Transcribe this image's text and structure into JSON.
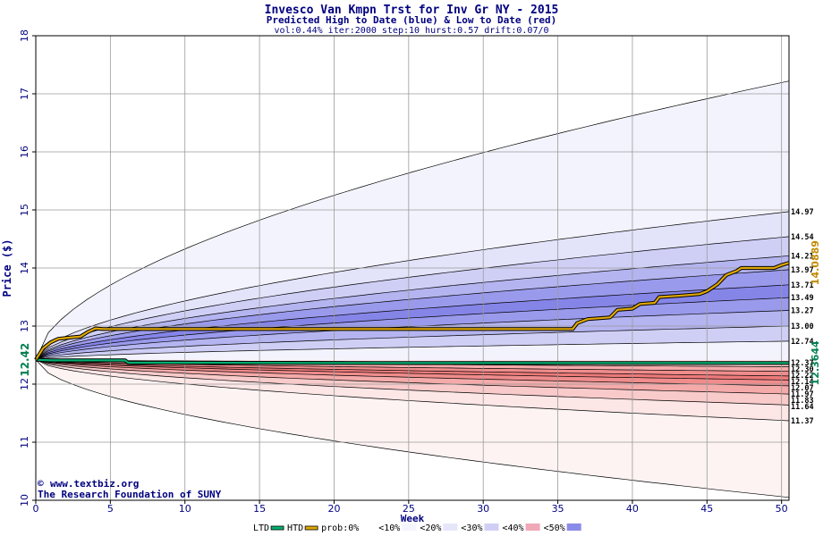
{
  "chart_data": {
    "type": "area",
    "title": "Invesco Van Kmpn Trst for Inv Gr NY - 2015",
    "subtitle": "Predicted High to Date (blue) &  Low to Date (red)",
    "params": "vol:0.44% iter:2000 step:10 hurst:0.57 drift:0.07/0",
    "xlabel": "Week",
    "ylabel": "Price ($)",
    "xlim": [
      0,
      50.5
    ],
    "ylim": [
      10,
      18
    ],
    "xticks": [
      0,
      5,
      10,
      15,
      20,
      25,
      30,
      35,
      40,
      45,
      50
    ],
    "yticks": [
      10,
      11,
      12,
      13,
      14,
      15,
      16,
      17,
      18
    ],
    "grid": true,
    "start_price": 12.42,
    "start_label": "12.42",
    "end_x": 50.5,
    "upper_bands": [
      {
        "end": 17.22,
        "fill": "#f3f3fd"
      },
      {
        "end": 14.97,
        "label": "14.97",
        "fill": "#e3e3fa"
      },
      {
        "end": 14.54,
        "label": "14.54",
        "fill": "#cfcff6"
      },
      {
        "end": 14.21,
        "label": "14.21",
        "fill": "#b4b4f0"
      },
      {
        "end": 13.97,
        "label": "13.97",
        "fill": "#9a9aec"
      },
      {
        "end": 13.71,
        "label": "13.71",
        "fill": "#8585e8"
      },
      {
        "end": 13.49,
        "label": "13.49",
        "fill": "#9a9aec"
      },
      {
        "end": 13.27,
        "label": "13.27",
        "fill": "#b4b4f0"
      },
      {
        "end": 13.0,
        "label": "13.00",
        "fill": "#cfcff6"
      },
      {
        "end": 12.74,
        "label": "12.74",
        "fill": "#f3f3fd"
      }
    ],
    "lower_bands": [
      {
        "end": 12.37,
        "label": "12.37",
        "fill": "#fde6e6"
      },
      {
        "end": 12.3,
        "label": "12.30",
        "fill": "#f9caca"
      },
      {
        "end": 12.22,
        "label": "12.22",
        "fill": "#f5aaaa"
      },
      {
        "end": 12.14,
        "label": "12.14",
        "fill": "#f08c8c"
      },
      {
        "end": 12.07,
        "label": "12.07",
        "fill": "#ed7a7a"
      },
      {
        "end": 11.97,
        "label": "11.97",
        "fill": "#f08c8c"
      },
      {
        "end": 11.83,
        "label": "11.83",
        "fill": "#f5aaaa"
      },
      {
        "end": 11.64,
        "label": "11.64",
        "fill": "#f9caca"
      },
      {
        "end": 11.37,
        "label": "11.37",
        "fill": "#fde6e6"
      },
      {
        "end": 10.05,
        "fill": "#fdf3f3"
      }
    ],
    "series": [
      {
        "name": "HTD",
        "color": "#e0a800",
        "end_label": "14.0889",
        "points": [
          [
            0,
            12.42
          ],
          [
            0.5,
            12.62
          ],
          [
            1.0,
            12.72
          ],
          [
            1.5,
            12.78
          ],
          [
            2.2,
            12.8
          ],
          [
            3.0,
            12.82
          ],
          [
            3.5,
            12.9
          ],
          [
            4.0,
            12.96
          ],
          [
            4.5,
            12.95
          ],
          [
            10,
            12.95
          ],
          [
            20,
            12.95
          ],
          [
            30,
            12.95
          ],
          [
            34,
            12.95
          ],
          [
            36,
            12.95
          ],
          [
            36.3,
            13.05
          ],
          [
            37,
            13.12
          ],
          [
            38.5,
            13.15
          ],
          [
            39,
            13.28
          ],
          [
            40,
            13.3
          ],
          [
            40.5,
            13.38
          ],
          [
            41.5,
            13.4
          ],
          [
            41.8,
            13.5
          ],
          [
            43,
            13.52
          ],
          [
            44.5,
            13.55
          ],
          [
            45,
            13.6
          ],
          [
            45.7,
            13.72
          ],
          [
            46,
            13.8
          ],
          [
            46.3,
            13.88
          ],
          [
            47,
            13.95
          ],
          [
            47.3,
            14.0
          ],
          [
            49.5,
            14.0
          ],
          [
            50,
            14.05
          ],
          [
            50.5,
            14.09
          ]
        ]
      },
      {
        "name": "LTD",
        "color": "#00b070",
        "end_label": "12.3644",
        "points": [
          [
            0,
            12.42
          ],
          [
            1,
            12.41
          ],
          [
            3,
            12.41
          ],
          [
            5,
            12.41
          ],
          [
            6.0,
            12.41
          ],
          [
            6.2,
            12.37
          ],
          [
            10,
            12.37
          ],
          [
            20,
            12.365
          ],
          [
            30,
            12.365
          ],
          [
            40,
            12.365
          ],
          [
            50.5,
            12.364
          ]
        ]
      }
    ],
    "credit_line1": "www.textbiz.org",
    "credit_line2": "The Research Foundation of SUNY",
    "legend": {
      "placement": "bottom",
      "items": [
        {
          "label": "LTD",
          "type": "line",
          "color": "#00b070"
        },
        {
          "label": "HTD",
          "type": "line",
          "color": "#e0a800"
        },
        {
          "label": "prob:0%",
          "type": "swatch",
          "color": "#ffffff"
        },
        {
          "label": "<10%",
          "type": "swatch",
          "color": "#f5f5fd"
        },
        {
          "label": "<20%",
          "type": "swatch",
          "color": "#e6e6fa"
        },
        {
          "label": "<30%",
          "type": "swatch",
          "color": "#cfcff6"
        },
        {
          "label": "<40%",
          "type": "swatch",
          "color": "#f0a8b8"
        },
        {
          "label": "<50%",
          "type": "swatch",
          "color": "#8a8ae8"
        }
      ]
    }
  }
}
